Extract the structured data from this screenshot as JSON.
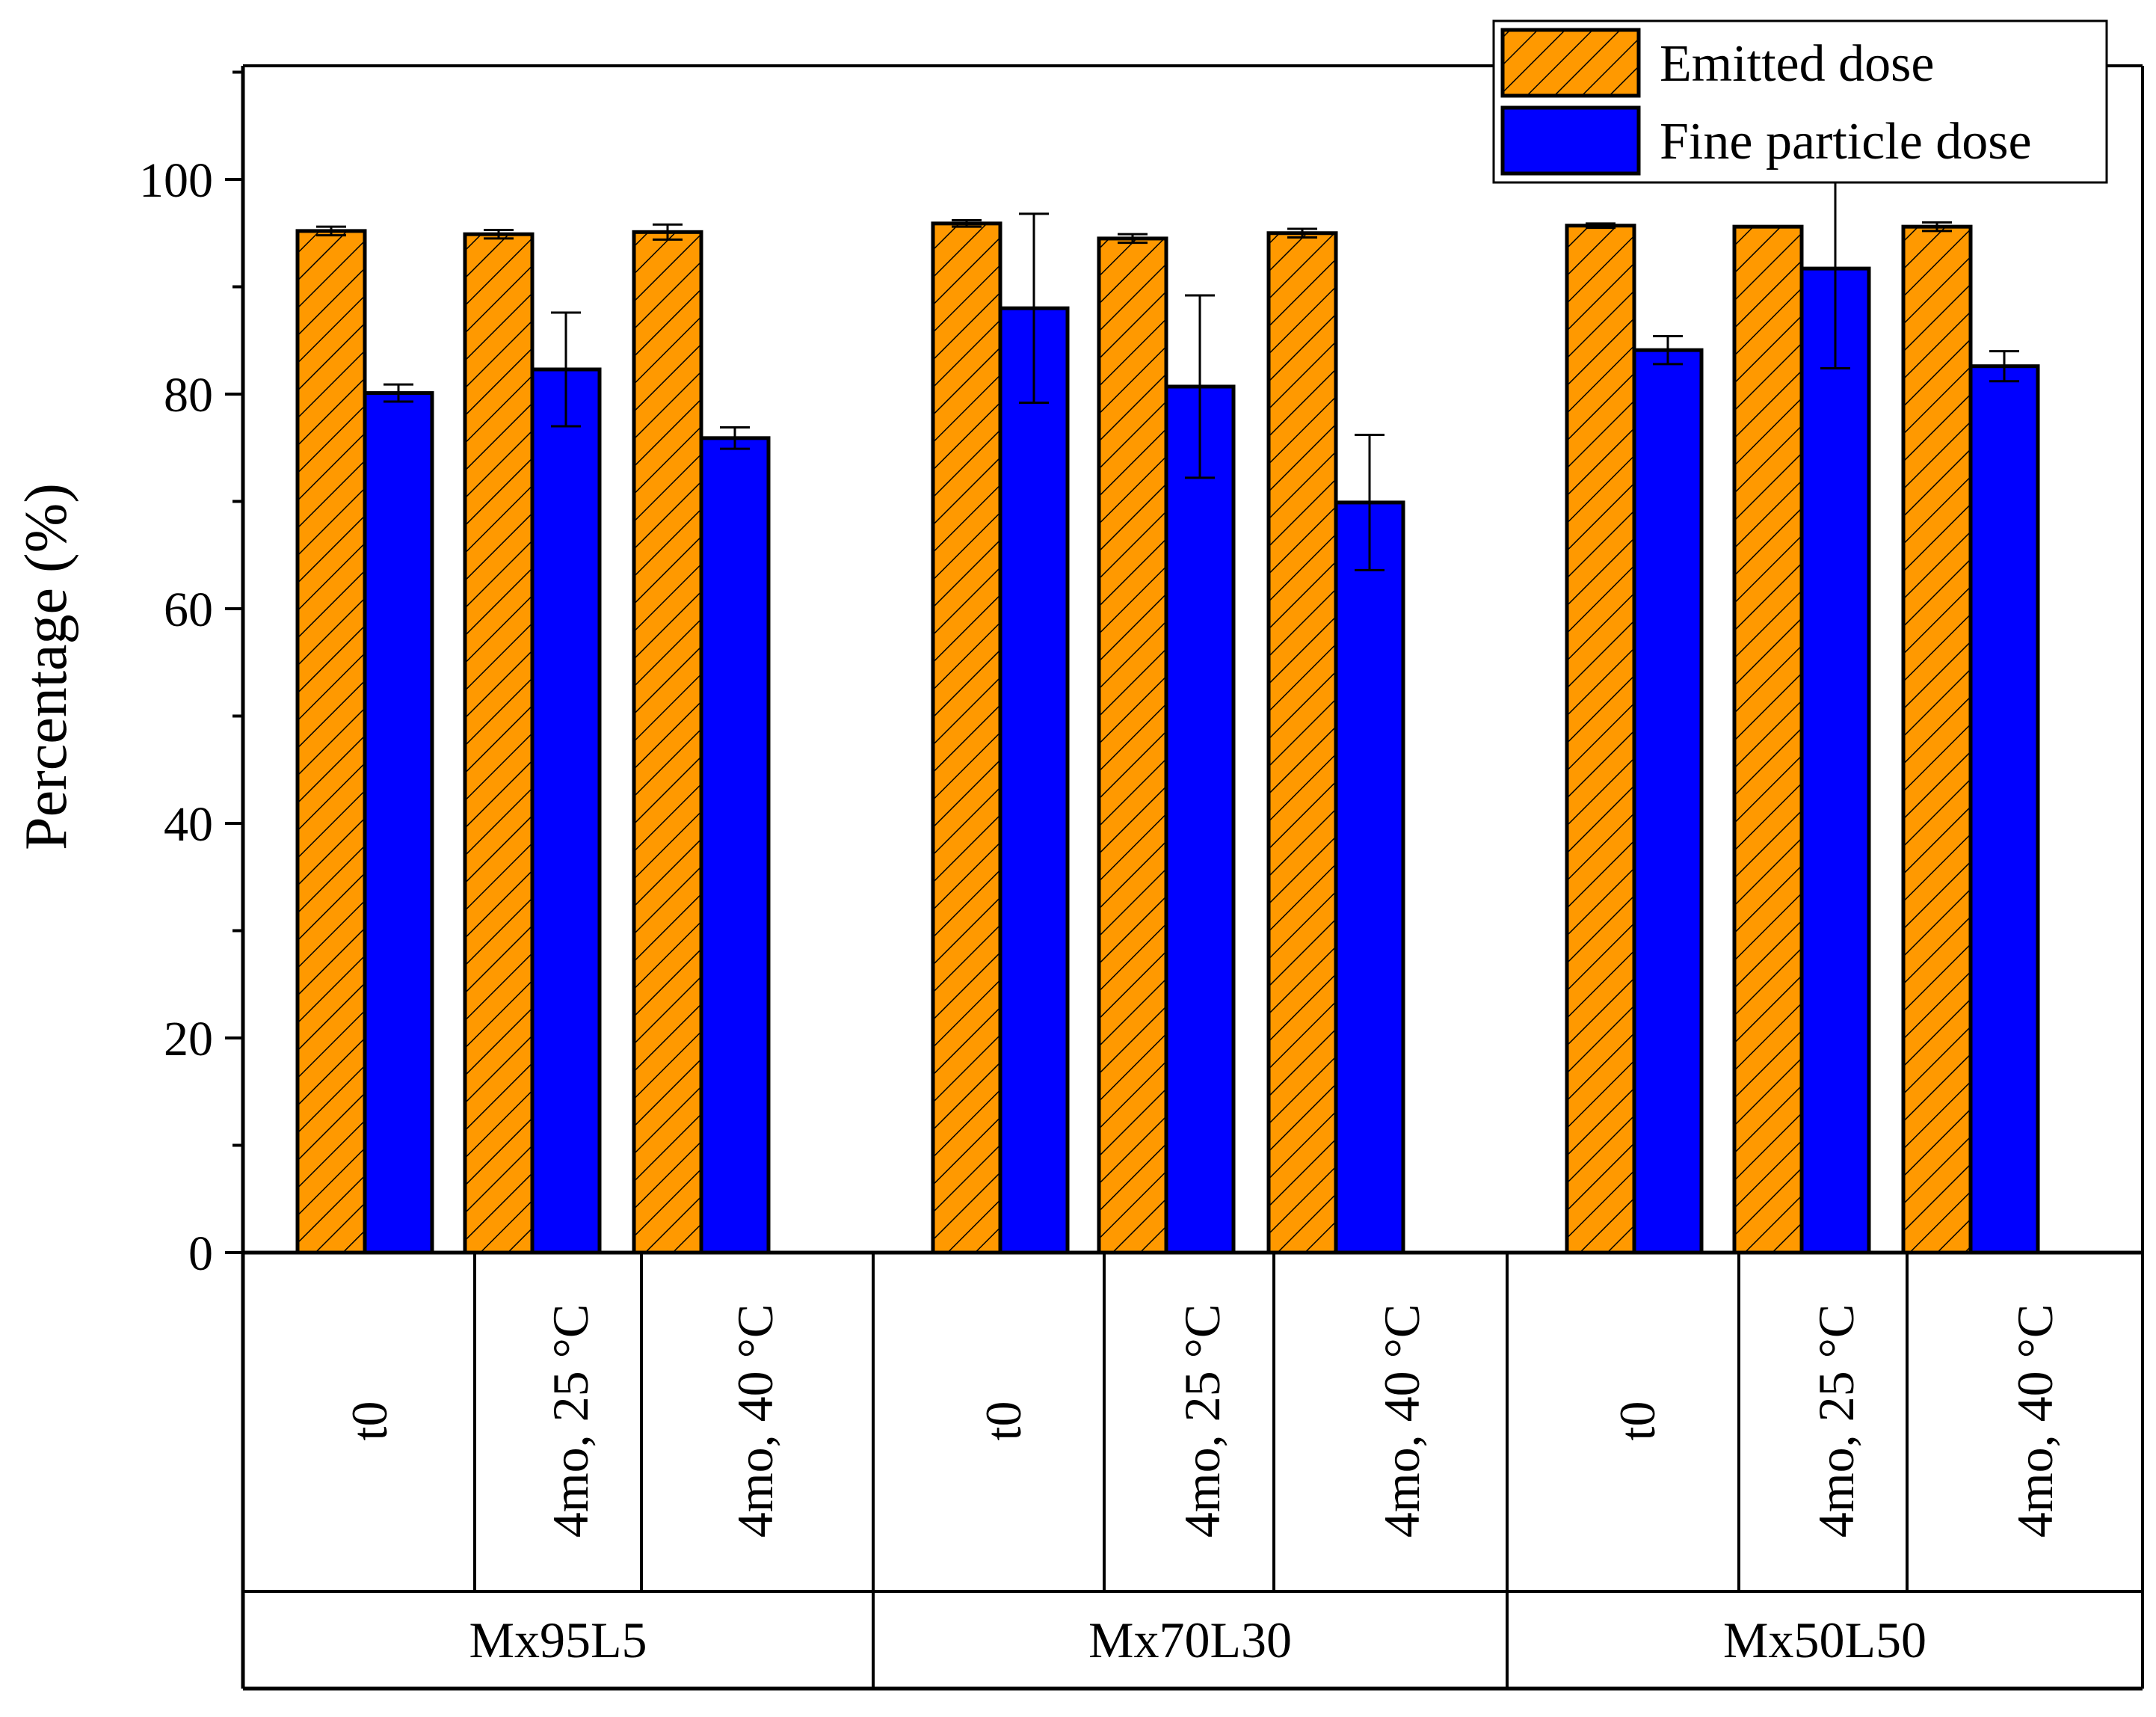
{
  "chart_data": {
    "type": "bar",
    "ylabel": "Percentage (%)",
    "xlabel": "",
    "ylim": [
      0,
      110
    ],
    "yticks": [
      0,
      20,
      40,
      60,
      80,
      100
    ],
    "ytick_labels": [
      "0",
      "20",
      "40",
      "60",
      "80",
      "100"
    ],
    "grid": false,
    "legend_position": "top-right",
    "groups": [
      {
        "name": "Mx95L5",
        "conditions": [
          "t0",
          "4mo, 25 °C",
          "4mo, 40 °C"
        ]
      },
      {
        "name": "Mx70L30",
        "conditions": [
          "t0",
          "4mo, 25 °C",
          "4mo, 40 °C"
        ]
      },
      {
        "name": "Mx50L50",
        "conditions": [
          "t0",
          "4mo, 25 °C",
          "4mo, 40 °C"
        ]
      }
    ],
    "categories": [
      "Mx95L5 t0",
      "Mx95L5 4mo, 25 °C",
      "Mx95L5 4mo, 40 °C",
      "Mx70L30 t0",
      "Mx70L30 4mo, 25 °C",
      "Mx70L30 4mo, 40 °C",
      "Mx50L50 t0",
      "Mx50L50 4mo, 25 °C",
      "Mx50L50 4mo, 40 °C"
    ],
    "series": [
      {
        "name": "Emitted dose",
        "color": "#FF9900",
        "pattern": "diagonal-hatch",
        "values": [
          95.2,
          94.9,
          95.1,
          95.9,
          94.5,
          95.0,
          95.7,
          95.6,
          95.6
        ],
        "errors": [
          0.4,
          0.4,
          0.7,
          0.3,
          0.4,
          0.4,
          0.2,
          0.0,
          0.4
        ]
      },
      {
        "name": "Fine particle dose",
        "color": "#0000FF",
        "pattern": "solid",
        "values": [
          80.1,
          82.3,
          75.9,
          88.0,
          80.7,
          69.9,
          84.1,
          91.7,
          82.6
        ],
        "errors": [
          0.8,
          5.3,
          1.0,
          8.8,
          8.5,
          6.3,
          1.3,
          9.3,
          1.4
        ]
      }
    ]
  }
}
